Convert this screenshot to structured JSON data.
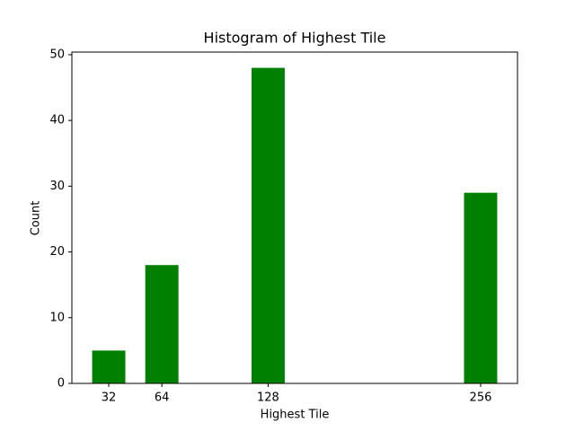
{
  "chart_data": {
    "type": "bar",
    "title": "Histogram of Highest Tile",
    "x_label": "Highest Tile",
    "y_label": "Count",
    "x": [
      32,
      64,
      128,
      256
    ],
    "values": [
      5,
      18,
      48,
      29
    ],
    "bar_width": 20,
    "color": "#008000",
    "xlim": [
      9.8,
      278.2
    ],
    "xticks": [
      32,
      64,
      128,
      256
    ],
    "ylim": [
      0,
      50.4
    ],
    "yticks": [
      0,
      10,
      20,
      30,
      40,
      50
    ],
    "grid": false
  }
}
